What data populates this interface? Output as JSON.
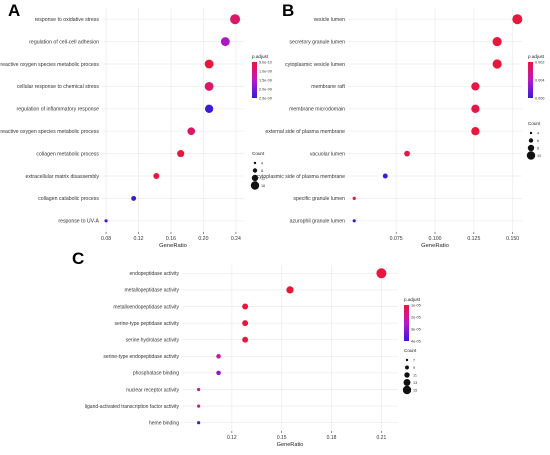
{
  "chart_data": [
    {
      "panel_label": "A",
      "type": "scatter",
      "xlabel": "GeneRatio",
      "ylabel": "",
      "xlim": [
        0.075,
        0.25
      ],
      "xticks": [
        0.08,
        0.12,
        0.16,
        0.2,
        0.24
      ],
      "xtick_labels": [
        "0.08",
        "0.12",
        "0.16",
        "0.20",
        "0.24"
      ],
      "categories": [
        "response to oxidative stress",
        "regulation of cell-cell adhesion",
        "reactive oxygen species metabolic process",
        "cellular response to chemical stress",
        "regulation of inflammatory response",
        "regulation of reactive oxygen species metabolic process",
        "collagen metabolic process",
        "extracellular matrix disassembly",
        "collagen catabolic process",
        "response to UV-A"
      ],
      "x": [
        0.239,
        0.227,
        0.207,
        0.207,
        0.207,
        0.185,
        0.172,
        0.142,
        0.114,
        0.08
      ],
      "count": [
        16,
        14,
        14,
        14,
        13,
        12,
        11,
        9,
        7,
        4
      ],
      "p_adjust": [
        5e-10,
        1.5e-09,
        1e-10,
        5e-10,
        2.6e-09,
        5e-10,
        1e-10,
        1e-10,
        2.6e-09,
        2.6e-09
      ],
      "color_legend": {
        "title": "p.adjust",
        "labels": [
          "5.0e-10",
          "1.0e-09",
          "1.5e-09",
          "2.0e-09",
          "2.5e-09"
        ]
      },
      "size_legend": {
        "title": "Count",
        "labels": [
          "4",
          "8",
          "12",
          "16"
        ]
      },
      "grid": true
    },
    {
      "panel_label": "B",
      "type": "scatter",
      "xlabel": "GeneRatio",
      "ylabel": "",
      "xlim": [
        0.044,
        0.156
      ],
      "xticks": [
        0.075,
        0.1,
        0.125,
        0.15
      ],
      "xtick_labels": [
        "0.075",
        "0.100",
        "0.125",
        "0.150"
      ],
      "categories": [
        "vesicle lumen",
        "secretory granule lumen",
        "cytoplasmic vesicle lumen",
        "membrane raft",
        "membrane microdomain",
        "external side of plasma membrane",
        "vacuolar lumen",
        "cytoplasmic side of plasma membrane",
        "specific granule lumen",
        "azurophil granule lumen"
      ],
      "x": [
        0.153,
        0.14,
        0.14,
        0.126,
        0.126,
        0.126,
        0.082,
        0.068,
        0.048,
        0.048
      ],
      "count": [
        12,
        11,
        11,
        10,
        10,
        10,
        7,
        6,
        4,
        4
      ],
      "p_adjust": [
        0.0005,
        0.0005,
        0.0005,
        0.0007,
        0.0007,
        0.0005,
        0.0007,
        0.006,
        0.0007,
        0.006
      ],
      "color_legend": {
        "title": "p.adjust",
        "labels": [
          "0.002",
          "0.004",
          "0.006"
        ]
      },
      "size_legend": {
        "title": "Count",
        "labels": [
          "4",
          "6",
          "8",
          "10"
        ]
      },
      "grid": true
    },
    {
      "panel_label": "C",
      "type": "scatter",
      "xlabel": "GeneRatio",
      "ylabel": "",
      "xlim": [
        0.09,
        0.22
      ],
      "xticks": [
        0.12,
        0.15,
        0.18,
        0.21
      ],
      "xtick_labels": [
        "0.12",
        "0.15",
        "0.18",
        "0.21"
      ],
      "categories": [
        "endopeptidase activity",
        "metallopeptidase activity",
        "metalloendopeptidase activity",
        "serine-type peptidase activity",
        "serine hydrolase activity",
        "serine-type endopeptidase activity",
        "phosphatase binding",
        "nuclear receptor activity",
        "ligand-activated transcription factor activity",
        "heme binding"
      ],
      "x": [
        0.21,
        0.155,
        0.128,
        0.128,
        0.128,
        0.112,
        0.112,
        0.1,
        0.1,
        0.1
      ],
      "count": [
        16,
        12,
        10,
        10,
        10,
        8,
        8,
        6,
        6,
        6
      ],
      "p_adjust": [
        1e-05,
        1e-05,
        1e-05,
        1e-05,
        1e-05,
        2e-05,
        3e-05,
        2e-05,
        2e-05,
        4e-05
      ],
      "color_legend": {
        "title": "p.adjust",
        "labels": [
          "1e-05",
          "2e-05",
          "3e-05",
          "4e-05"
        ]
      },
      "size_legend": {
        "title": "Count",
        "labels": [
          "7",
          "9",
          "11",
          "13",
          "15"
        ]
      },
      "grid": true
    }
  ],
  "colors": {
    "high": "#e8173c",
    "mid": "#bb18c4",
    "low": "#3a1bd6",
    "grid": "#ebebeb",
    "panel": "#ffffff"
  }
}
